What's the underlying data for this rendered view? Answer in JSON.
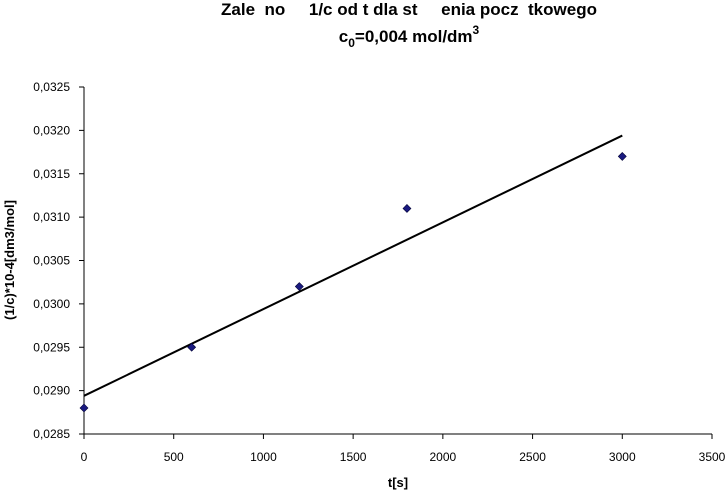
{
  "chart_data": {
    "type": "scatter",
    "title": "Zale  no     1/c od t dla st     enia pocz  tkowego",
    "subtitle": {
      "prefix": "c",
      "subscript": "0",
      "main": "=0,004 mol/dm",
      "superscript": "3"
    },
    "xlabel": "t[s]",
    "ylabel": "(1/c)*10-4[dm3/mol]",
    "xlim": [
      0,
      3500
    ],
    "ylim": [
      0.0285,
      0.0325
    ],
    "x_ticks": [
      0,
      500,
      1000,
      1500,
      2000,
      2500,
      3000,
      3500
    ],
    "x_tick_labels": [
      "0",
      "500",
      "1000",
      "1500",
      "2000",
      "2500",
      "3000",
      "3500"
    ],
    "y_ticks": [
      0.0285,
      0.029,
      0.0295,
      0.03,
      0.0305,
      0.031,
      0.0315,
      0.032,
      0.0325
    ],
    "y_tick_labels": [
      "0,0285",
      "0,0290",
      "0,0295",
      "0,0300",
      "0,0305",
      "0,0310",
      "0,0315",
      "0,0320",
      "0,0325"
    ],
    "grid": false,
    "legend": "none",
    "series": [
      {
        "x": [
          0,
          600,
          1200,
          1800,
          3000
        ],
        "y": [
          0.0288,
          0.0295,
          0.0302,
          0.0311,
          0.0317
        ],
        "marker": "diamond",
        "color": "#1a1a80"
      }
    ],
    "trendline": {
      "x": [
        0,
        3000
      ],
      "y": [
        0.02894,
        0.03194
      ],
      "color": "#000000"
    }
  }
}
